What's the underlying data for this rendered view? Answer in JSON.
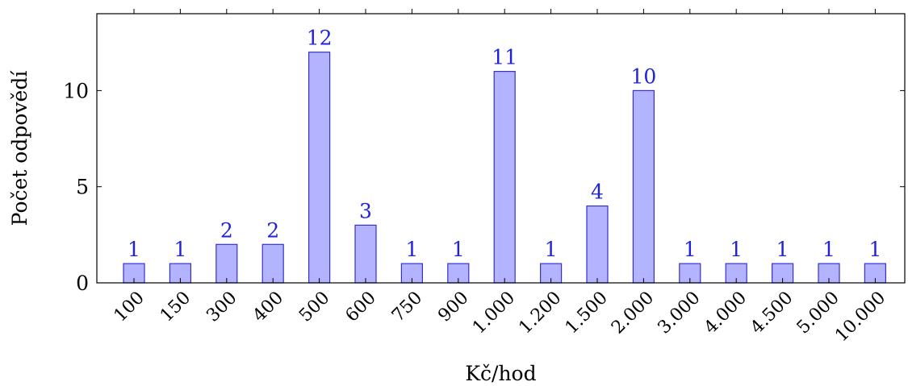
{
  "chart_data": {
    "type": "bar",
    "categories": [
      "100",
      "150",
      "300",
      "400",
      "500",
      "600",
      "750",
      "900",
      "1.000",
      "1.200",
      "1.500",
      "2.000",
      "3.000",
      "4.000",
      "4.500",
      "5.000",
      "10.000"
    ],
    "values": [
      1,
      1,
      2,
      2,
      12,
      3,
      1,
      1,
      11,
      1,
      4,
      10,
      1,
      1,
      1,
      1,
      1
    ],
    "data_labels": [
      "1",
      "1",
      "2",
      "2",
      "12",
      "3",
      "1",
      "1",
      "11",
      "1",
      "4",
      "10",
      "1",
      "1",
      "1",
      "1",
      "1"
    ],
    "xlabel": "Kč/hod",
    "ylabel": "Počet odpovědí",
    "ylim": [
      0,
      14
    ],
    "yticks": [
      0,
      5,
      10
    ],
    "ytick_labels": [
      "0",
      "5",
      "10"
    ],
    "grid": false,
    "colors": {
      "bar_fill": "#b3b3ff",
      "bar_stroke": "#3333cc",
      "data_label": "#2222dd"
    }
  }
}
